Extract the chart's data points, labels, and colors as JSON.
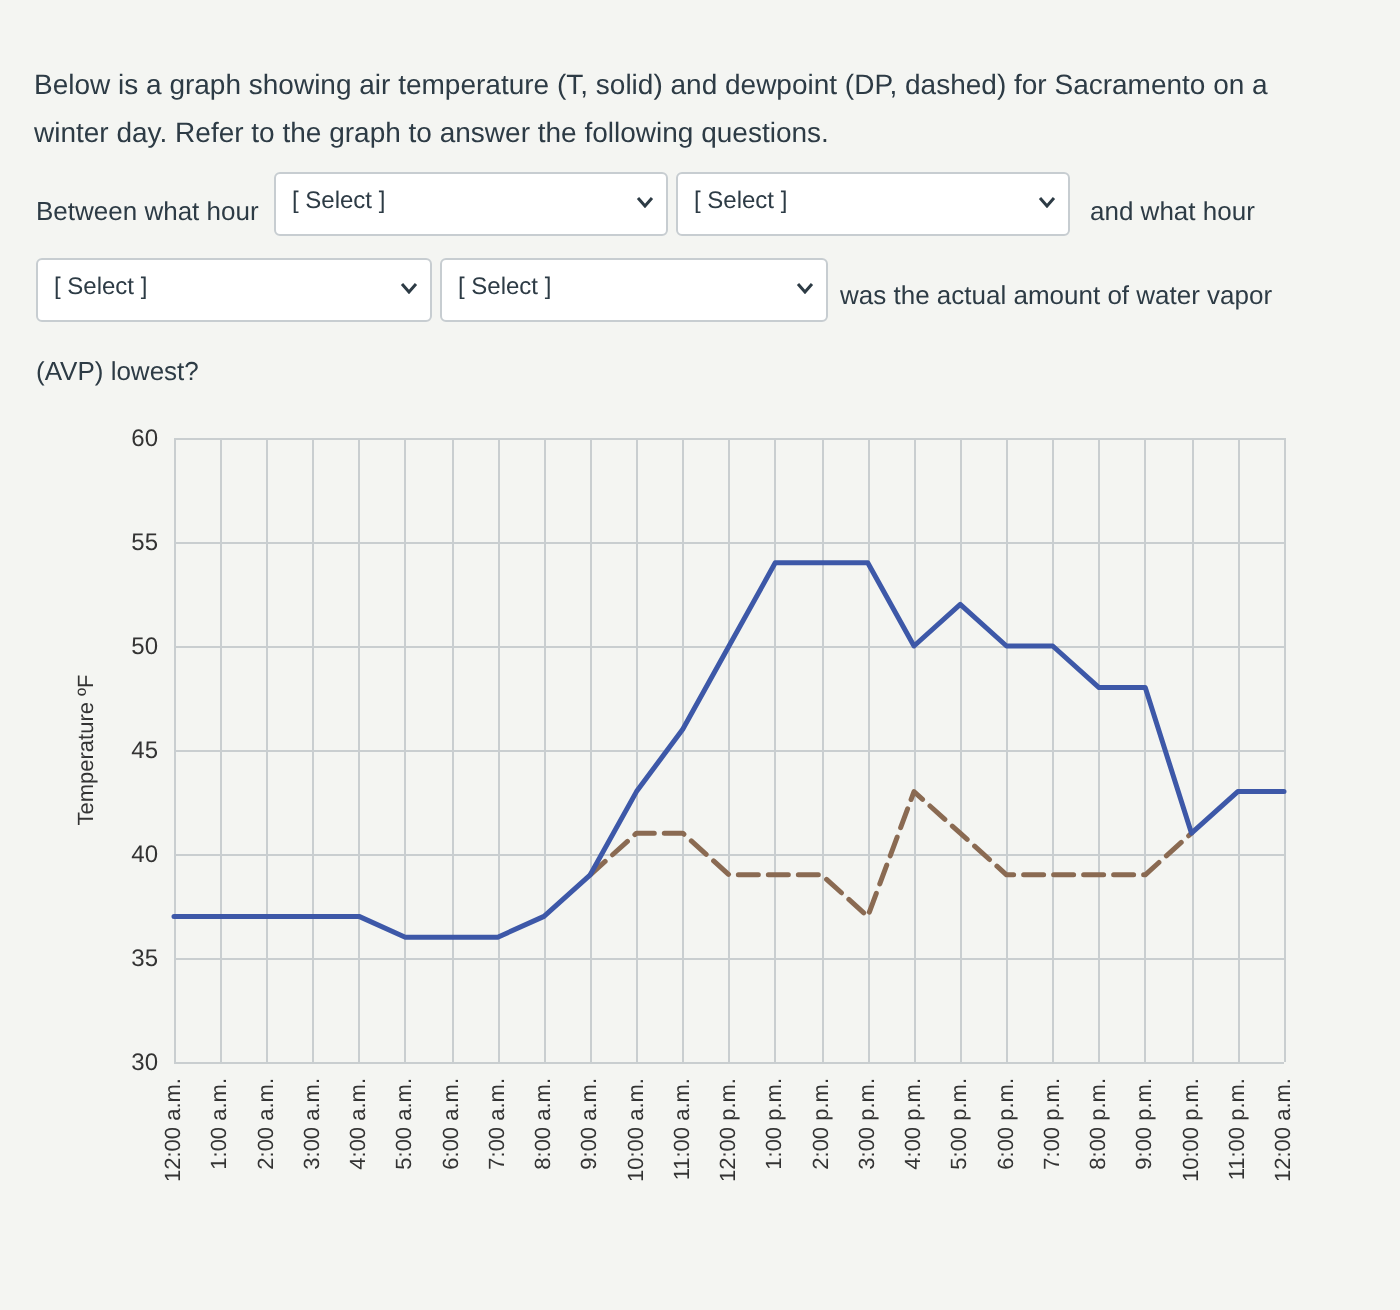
{
  "chart_data": {
    "type": "line",
    "title": "Below is a graph showing air temperature (T, solid) and dewpoint (DP, dashed) for Sacramento on a winter day. Refer to the graph to answer the following questions.",
    "annotations": [
      "Between what hour",
      "[ Select ]",
      "[ Select ]",
      "and what hour",
      "[ Select ]",
      "[ Select ]",
      "was the actual amount of water vapor",
      "(AVP) lowest?"
    ],
    "ylabel": "Temperature ºF",
    "categories": [
      "12:00 a.m.",
      "1:00 a.m.",
      "2:00 a.m.",
      "3:00 a.m.",
      "4:00 a.m.",
      "5:00 a.m.",
      "6:00 a.m.",
      "7:00 a.m.",
      "8:00 a.m.",
      "9:00 a.m.",
      "10:00 a.m.",
      "11:00 a.m.",
      "12:00 p.m.",
      "1:00 p.m.",
      "2:00 p.m.",
      "3:00 p.m.",
      "4:00 p.m.",
      "5:00 p.m.",
      "6:00 p.m.",
      "7:00 p.m.",
      "8:00 p.m.",
      "9:00 p.m.",
      "10:00 p.m.",
      "11:00 p.m.",
      "12:00 a.m."
    ],
    "series": [
      {
        "color": "#8a6a52",
        "line_style": "dashed",
        "values": [
          null,
          null,
          null,
          null,
          null,
          null,
          null,
          null,
          null,
          39,
          41,
          41,
          39,
          39,
          39,
          37,
          43,
          41,
          39,
          39,
          39,
          39,
          41,
          null,
          null
        ]
      },
      {
        "color": "#3d58a8",
        "line_style": "solid",
        "values": [
          37,
          37,
          37,
          37,
          37,
          36,
          36,
          36,
          37,
          39,
          43,
          46,
          50,
          54,
          54,
          54,
          50,
          52,
          50,
          50,
          48,
          48,
          41,
          43,
          43
        ]
      }
    ],
    "ylim": [
      30,
      60
    ],
    "yticks": [
      30,
      35,
      40,
      45,
      50,
      55,
      60
    ],
    "grid": true,
    "marker": "none"
  }
}
